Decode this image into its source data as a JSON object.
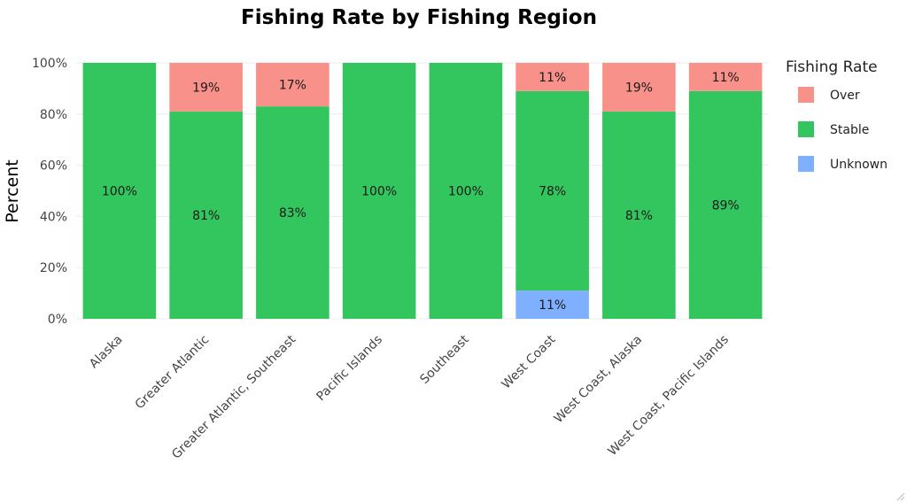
{
  "chart_data": {
    "type": "bar",
    "stacked": true,
    "title": "Fishing Rate by Fishing Region",
    "xlabel": "",
    "ylabel": "Percent",
    "ylim": [
      0,
      100
    ],
    "y_ticks": [
      "0%",
      "20%",
      "40%",
      "60%",
      "80%",
      "100%"
    ],
    "grid": true,
    "categories": [
      "Alaska",
      "Greater Atlantic",
      "Greater Atlantic, Southeast",
      "Pacific Islands",
      "Southeast",
      "West Coast",
      "West Coast, Alaska",
      "West Coast, Pacific Islands"
    ],
    "series": [
      {
        "name": "Unknown",
        "color": "#7fafff",
        "values": [
          0,
          0,
          0,
          0,
          0,
          11,
          0,
          0
        ],
        "labels": [
          "",
          "",
          "",
          "",
          "",
          "11%",
          "",
          ""
        ]
      },
      {
        "name": "Stable",
        "color": "#33c55e",
        "values": [
          100,
          81,
          83,
          100,
          100,
          78,
          81,
          89
        ],
        "labels": [
          "100%",
          "81%",
          "83%",
          "100%",
          "100%",
          "78%",
          "81%",
          "89%"
        ]
      },
      {
        "name": "Over",
        "color": "#f8918a",
        "values": [
          0,
          19,
          17,
          0,
          0,
          11,
          19,
          11
        ],
        "labels": [
          "",
          "19%",
          "17%",
          "",
          "",
          "11%",
          "19%",
          "11%"
        ]
      }
    ],
    "legend": {
      "title": "Fishing Rate",
      "position": "right",
      "items": [
        {
          "name": "Over",
          "color": "#f8918a"
        },
        {
          "name": "Stable",
          "color": "#33c55e"
        },
        {
          "name": "Unknown",
          "color": "#7fafff"
        }
      ]
    }
  }
}
